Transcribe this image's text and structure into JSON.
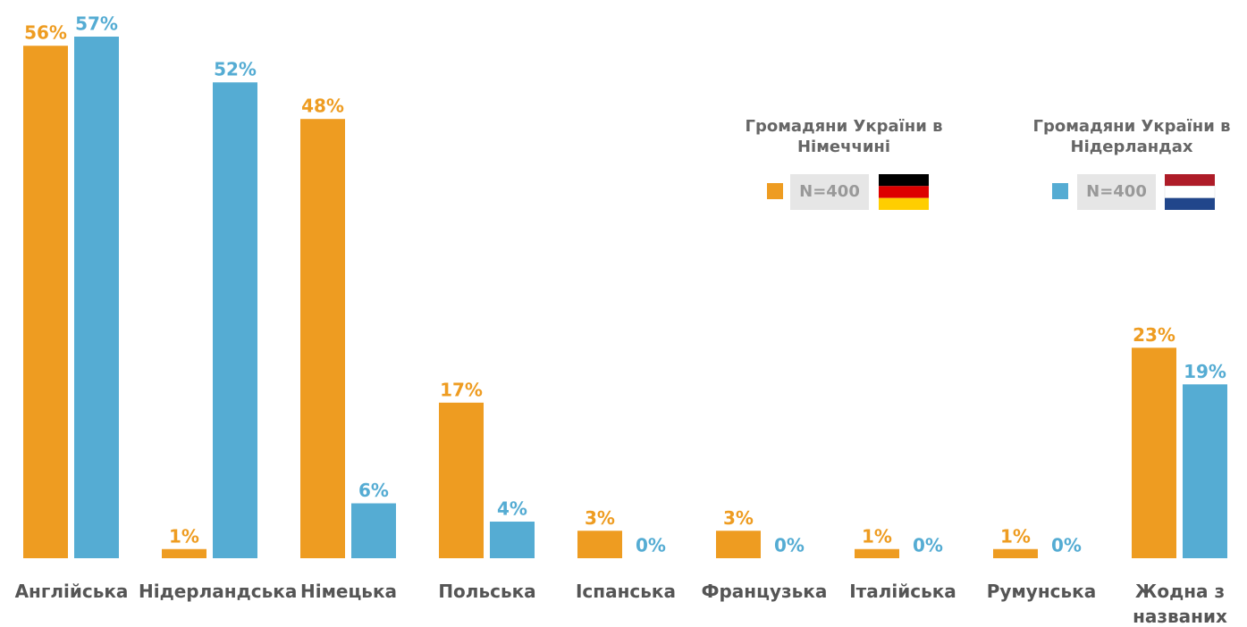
{
  "chart_data": {
    "type": "bar",
    "categories": [
      "Англійська",
      "Нідерландська",
      "Німецька",
      "Польська",
      "Іспанська",
      "Французька",
      "Італійська",
      "Румунська",
      "Жодна з названих"
    ],
    "series": [
      {
        "name": "Громадяни України в Німеччині",
        "n": "N=400",
        "color": "#ee9c21",
        "values": [
          56,
          1,
          48,
          17,
          3,
          3,
          1,
          1,
          23
        ],
        "value_labels": [
          "56%",
          "1%",
          "48%",
          "17%",
          "3%",
          "3%",
          "1%",
          "1%",
          "23%"
        ]
      },
      {
        "name": "Громадяни України в Нідерландах",
        "n": "N=400",
        "color": "#55acd3",
        "values": [
          57,
          52,
          6,
          4,
          0,
          0,
          0,
          0,
          19
        ],
        "value_labels": [
          "57%",
          "52%",
          "6%",
          "4%",
          "0%",
          "0%",
          "0%",
          "0%",
          "19%"
        ]
      }
    ],
    "ylim": [
      0,
      61
    ],
    "grid": false
  }
}
